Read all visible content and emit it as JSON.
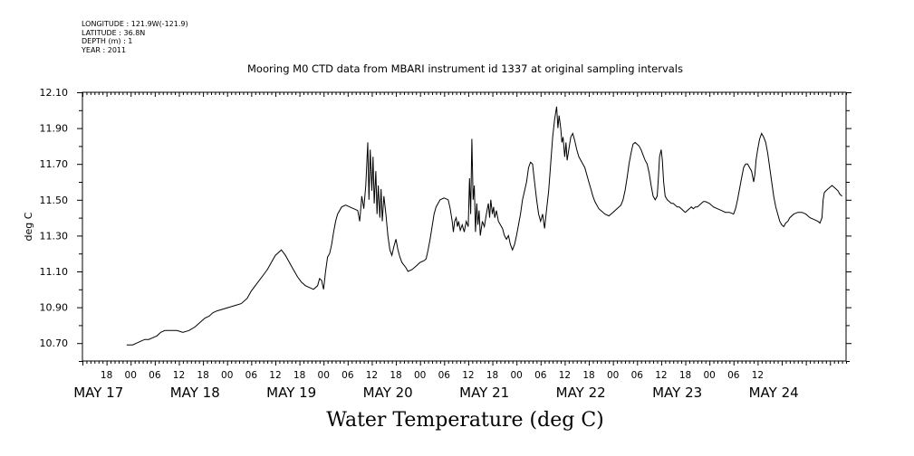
{
  "header": {
    "meta_lines": [
      "LONGITUDE : 121.9W(-121.9)",
      "LATITUDE : 36.8N",
      "DEPTH (m) : 1",
      "YEAR : 2011"
    ],
    "subtitle": "Mooring M0 CTD data from MBARI instrument id 1337 at original sampling intervals"
  },
  "chart_data": {
    "type": "line",
    "title": "Water Temperature (deg C)",
    "ylabel": "deg C",
    "xlabel": "",
    "ylim": [
      10.6,
      12.1
    ],
    "xlim": [
      0,
      190
    ],
    "x_units": "hours since MAY 17 00:00 (2011)",
    "yticks": [
      "10.70",
      "10.90",
      "11.10",
      "11.30",
      "11.50",
      "11.70",
      "11.90",
      "12.10"
    ],
    "xtick_hour_labels": [
      "18",
      "00",
      "06",
      "12",
      "18",
      "00",
      "06",
      "12",
      "18",
      "00",
      "06",
      "12",
      "18",
      "00",
      "06",
      "12",
      "18",
      "00",
      "06",
      "12",
      "18",
      "00",
      "06",
      "12",
      "18",
      "00",
      "06",
      "12"
    ],
    "day_labels": [
      "MAY 17",
      "MAY 18",
      "MAY 19",
      "MAY 20",
      "MAY 21",
      "MAY 22",
      "MAY 23",
      "MAY 24"
    ],
    "series": [
      {
        "points": [
          [
            11.0,
            10.69
          ],
          [
            12.5,
            10.69
          ],
          [
            13.5,
            10.7
          ],
          [
            14.5,
            10.71
          ],
          [
            15.5,
            10.72
          ],
          [
            16.5,
            10.72
          ],
          [
            17.5,
            10.73
          ],
          [
            18.5,
            10.74
          ],
          [
            19.5,
            10.76
          ],
          [
            20.5,
            10.77
          ],
          [
            22,
            10.77
          ],
          [
            23.5,
            10.77
          ],
          [
            25,
            10.76
          ],
          [
            26.5,
            10.77
          ],
          [
            28,
            10.79
          ],
          [
            29.5,
            10.82
          ],
          [
            30.5,
            10.84
          ],
          [
            31.5,
            10.85
          ],
          [
            32.5,
            10.87
          ],
          [
            33.5,
            10.88
          ],
          [
            35,
            10.89
          ],
          [
            36.5,
            10.9
          ],
          [
            38,
            10.91
          ],
          [
            39.5,
            10.92
          ],
          [
            41,
            10.95
          ],
          [
            42,
            10.99
          ],
          [
            43,
            11.02
          ],
          [
            44,
            11.05
          ],
          [
            45,
            11.08
          ],
          [
            46,
            11.11
          ],
          [
            47,
            11.15
          ],
          [
            48,
            11.19
          ],
          [
            49,
            11.21
          ],
          [
            49.5,
            11.22
          ],
          [
            50.5,
            11.19
          ],
          [
            51.5,
            11.15
          ],
          [
            52.5,
            11.11
          ],
          [
            53.5,
            11.07
          ],
          [
            54.5,
            11.04
          ],
          [
            55.5,
            11.02
          ],
          [
            56.5,
            11.01
          ],
          [
            57.5,
            11.0
          ],
          [
            58.5,
            11.02
          ],
          [
            59,
            11.06
          ],
          [
            59.5,
            11.05
          ],
          [
            60,
            11.0
          ],
          [
            60.5,
            11.1
          ],
          [
            61,
            11.18
          ],
          [
            61.5,
            11.2
          ],
          [
            62,
            11.25
          ],
          [
            62.5,
            11.32
          ],
          [
            63,
            11.38
          ],
          [
            63.5,
            11.42
          ],
          [
            64.5,
            11.46
          ],
          [
            65.5,
            11.47
          ],
          [
            66.5,
            11.46
          ],
          [
            67.5,
            11.45
          ],
          [
            68.5,
            11.44
          ],
          [
            69,
            11.38
          ],
          [
            69.5,
            11.52
          ],
          [
            70,
            11.45
          ],
          [
            70.5,
            11.58
          ],
          [
            71,
            11.82
          ],
          [
            71.3,
            11.5
          ],
          [
            71.6,
            11.78
          ],
          [
            72,
            11.55
          ],
          [
            72.3,
            11.74
          ],
          [
            72.6,
            11.48
          ],
          [
            73,
            11.66
          ],
          [
            73.3,
            11.42
          ],
          [
            73.6,
            11.58
          ],
          [
            74,
            11.4
          ],
          [
            74.3,
            11.56
          ],
          [
            74.6,
            11.38
          ],
          [
            75,
            11.52
          ],
          [
            75.5,
            11.42
          ],
          [
            76,
            11.3
          ],
          [
            76.5,
            11.22
          ],
          [
            77,
            11.19
          ],
          [
            77.5,
            11.24
          ],
          [
            78,
            11.28
          ],
          [
            78.5,
            11.22
          ],
          [
            79,
            11.18
          ],
          [
            79.5,
            11.15
          ],
          [
            80.5,
            11.12
          ],
          [
            81,
            11.1
          ],
          [
            82,
            11.11
          ],
          [
            83,
            11.13
          ],
          [
            84,
            11.15
          ],
          [
            85,
            11.16
          ],
          [
            85.5,
            11.17
          ],
          [
            86,
            11.22
          ],
          [
            86.5,
            11.28
          ],
          [
            87,
            11.35
          ],
          [
            87.5,
            11.42
          ],
          [
            88,
            11.46
          ],
          [
            89,
            11.5
          ],
          [
            90,
            11.51
          ],
          [
            91,
            11.5
          ],
          [
            91.5,
            11.45
          ],
          [
            92,
            11.38
          ],
          [
            92.3,
            11.32
          ],
          [
            92.6,
            11.38
          ],
          [
            93,
            11.4
          ],
          [
            93.3,
            11.35
          ],
          [
            93.6,
            11.38
          ],
          [
            94,
            11.33
          ],
          [
            94.5,
            11.36
          ],
          [
            95,
            11.32
          ],
          [
            95.5,
            11.38
          ],
          [
            96,
            11.35
          ],
          [
            96.3,
            11.62
          ],
          [
            96.6,
            11.42
          ],
          [
            96.9,
            11.84
          ],
          [
            97.2,
            11.5
          ],
          [
            97.5,
            11.58
          ],
          [
            97.8,
            11.32
          ],
          [
            98.1,
            11.48
          ],
          [
            98.4,
            11.36
          ],
          [
            98.7,
            11.44
          ],
          [
            99,
            11.3
          ],
          [
            99.5,
            11.38
          ],
          [
            100,
            11.35
          ],
          [
            100.5,
            11.42
          ],
          [
            101,
            11.48
          ],
          [
            101.3,
            11.4
          ],
          [
            101.6,
            11.5
          ],
          [
            102,
            11.42
          ],
          [
            102.3,
            11.46
          ],
          [
            102.6,
            11.4
          ],
          [
            103,
            11.44
          ],
          [
            103.5,
            11.38
          ],
          [
            104,
            11.36
          ],
          [
            104.5,
            11.34
          ],
          [
            105,
            11.3
          ],
          [
            105.5,
            11.28
          ],
          [
            106,
            11.3
          ],
          [
            106.5,
            11.25
          ],
          [
            107,
            11.22
          ],
          [
            107.5,
            11.25
          ],
          [
            108,
            11.3
          ],
          [
            108.5,
            11.36
          ],
          [
            109,
            11.42
          ],
          [
            109.5,
            11.5
          ],
          [
            110,
            11.55
          ],
          [
            110.5,
            11.6
          ],
          [
            111,
            11.68
          ],
          [
            111.5,
            11.71
          ],
          [
            112,
            11.7
          ],
          [
            112.5,
            11.6
          ],
          [
            113,
            11.5
          ],
          [
            113.5,
            11.42
          ],
          [
            114,
            11.38
          ],
          [
            114.5,
            11.42
          ],
          [
            115,
            11.34
          ],
          [
            115.5,
            11.45
          ],
          [
            116,
            11.55
          ],
          [
            116.5,
            11.7
          ],
          [
            117,
            11.85
          ],
          [
            117.5,
            11.95
          ],
          [
            118,
            12.02
          ],
          [
            118.3,
            11.9
          ],
          [
            118.6,
            11.97
          ],
          [
            119,
            11.9
          ],
          [
            119.3,
            11.82
          ],
          [
            119.6,
            11.85
          ],
          [
            120,
            11.74
          ],
          [
            120.3,
            11.82
          ],
          [
            120.6,
            11.72
          ],
          [
            121,
            11.78
          ],
          [
            121.5,
            11.85
          ],
          [
            122,
            11.87
          ],
          [
            122.5,
            11.83
          ],
          [
            123,
            11.78
          ],
          [
            123.5,
            11.74
          ],
          [
            124,
            11.72
          ],
          [
            124.5,
            11.7
          ],
          [
            125,
            11.68
          ],
          [
            125.5,
            11.64
          ],
          [
            126,
            11.6
          ],
          [
            126.5,
            11.56
          ],
          [
            127,
            11.52
          ],
          [
            127.5,
            11.49
          ],
          [
            128,
            11.47
          ],
          [
            128.5,
            11.45
          ],
          [
            129,
            11.44
          ],
          [
            130,
            11.42
          ],
          [
            131,
            11.41
          ],
          [
            132,
            11.43
          ],
          [
            133,
            11.45
          ],
          [
            134,
            11.47
          ],
          [
            134.5,
            11.5
          ],
          [
            135,
            11.55
          ],
          [
            135.5,
            11.62
          ],
          [
            136,
            11.7
          ],
          [
            136.5,
            11.76
          ],
          [
            137,
            11.81
          ],
          [
            137.5,
            11.82
          ],
          [
            138,
            11.81
          ],
          [
            138.5,
            11.8
          ],
          [
            139,
            11.78
          ],
          [
            139.5,
            11.75
          ],
          [
            140,
            11.72
          ],
          [
            140.5,
            11.7
          ],
          [
            141,
            11.65
          ],
          [
            141.5,
            11.58
          ],
          [
            142,
            11.52
          ],
          [
            142.5,
            11.5
          ],
          [
            143,
            11.52
          ],
          [
            143.3,
            11.62
          ],
          [
            143.6,
            11.74
          ],
          [
            144,
            11.78
          ],
          [
            144.3,
            11.72
          ],
          [
            144.6,
            11.6
          ],
          [
            145,
            11.52
          ],
          [
            145.5,
            11.5
          ],
          [
            146,
            11.49
          ],
          [
            146.5,
            11.48
          ],
          [
            147,
            11.48
          ],
          [
            147.5,
            11.47
          ],
          [
            148,
            11.46
          ],
          [
            148.5,
            11.46
          ],
          [
            149,
            11.45
          ],
          [
            149.5,
            11.44
          ],
          [
            150,
            11.43
          ],
          [
            150.5,
            11.44
          ],
          [
            151,
            11.45
          ],
          [
            151.5,
            11.46
          ],
          [
            152,
            11.45
          ],
          [
            152.5,
            11.46
          ],
          [
            153,
            11.46
          ],
          [
            153.5,
            11.47
          ],
          [
            154,
            11.48
          ],
          [
            154.5,
            11.49
          ],
          [
            155,
            11.49
          ],
          [
            156,
            11.48
          ],
          [
            157,
            11.46
          ],
          [
            158,
            11.45
          ],
          [
            159,
            11.44
          ],
          [
            160,
            11.43
          ],
          [
            161,
            11.43
          ],
          [
            162,
            11.42
          ],
          [
            162.5,
            11.45
          ],
          [
            163,
            11.5
          ],
          [
            163.5,
            11.56
          ],
          [
            164,
            11.62
          ],
          [
            164.5,
            11.68
          ],
          [
            165,
            11.7
          ],
          [
            165.5,
            11.7
          ],
          [
            166,
            11.68
          ],
          [
            166.5,
            11.66
          ],
          [
            167,
            11.6
          ],
          [
            167.3,
            11.64
          ],
          [
            167.6,
            11.72
          ],
          [
            168,
            11.78
          ],
          [
            168.5,
            11.84
          ],
          [
            169,
            11.87
          ],
          [
            169.5,
            11.85
          ],
          [
            170,
            11.82
          ],
          [
            170.5,
            11.76
          ],
          [
            171,
            11.68
          ],
          [
            171.5,
            11.6
          ],
          [
            172,
            11.52
          ],
          [
            172.5,
            11.46
          ],
          [
            173,
            11.42
          ],
          [
            173.5,
            11.38
          ],
          [
            174,
            11.36
          ],
          [
            174.5,
            11.35
          ],
          [
            175,
            11.37
          ],
          [
            175.5,
            11.38
          ],
          [
            176,
            11.4
          ],
          [
            177,
            11.42
          ],
          [
            178,
            11.43
          ],
          [
            179,
            11.43
          ],
          [
            180,
            11.42
          ],
          [
            180.5,
            11.41
          ],
          [
            181,
            11.4
          ],
          [
            182,
            11.39
          ],
          [
            183,
            11.38
          ],
          [
            183.5,
            11.37
          ],
          [
            184,
            11.4
          ],
          [
            184.3,
            11.5
          ],
          [
            184.6,
            11.54
          ],
          [
            185,
            11.55
          ],
          [
            185.5,
            11.56
          ],
          [
            186,
            11.57
          ],
          [
            186.5,
            11.58
          ],
          [
            187,
            11.57
          ],
          [
            187.5,
            11.56
          ],
          [
            188,
            11.55
          ],
          [
            188.5,
            11.53
          ],
          [
            189,
            11.52
          ]
        ]
      }
    ]
  }
}
